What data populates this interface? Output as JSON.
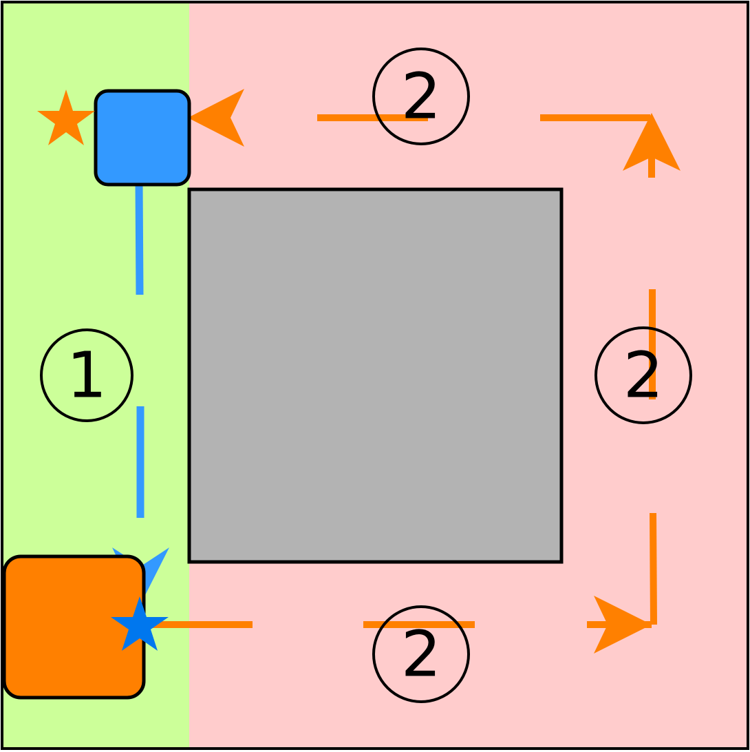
{
  "regions": {
    "left_color": "#ccff99",
    "right_color": "#ffcccc",
    "obstacle_color": "#b3b3b3"
  },
  "agents": {
    "blue_color": "#3399ff",
    "orange_color": "#ff8000",
    "blue_star_color": "#0077ee"
  },
  "labels": {
    "step1": "1",
    "step2_top": "2",
    "step2_right": "2",
    "step2_bottom": "2"
  }
}
